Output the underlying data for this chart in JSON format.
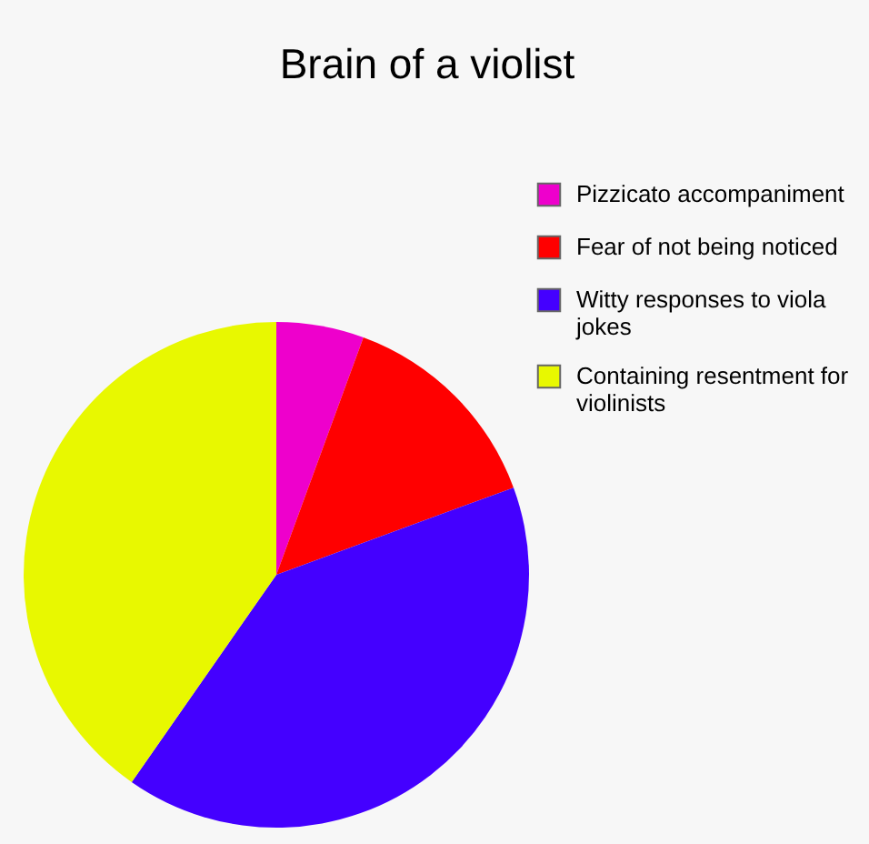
{
  "chart_data": {
    "type": "pie",
    "title": "Brain of a violist",
    "categories": [
      "Pizzicato accompaniment",
      "Fear of not being noticed",
      "Witty responses to viola jokes",
      "Containing resentment for violinists"
    ],
    "values": [
      5.6,
      13.8,
      40.3,
      40.3
    ],
    "colors": [
      "#ee00cc",
      "#ff0000",
      "#4400ff",
      "#e8f800"
    ],
    "legend": "top right"
  }
}
